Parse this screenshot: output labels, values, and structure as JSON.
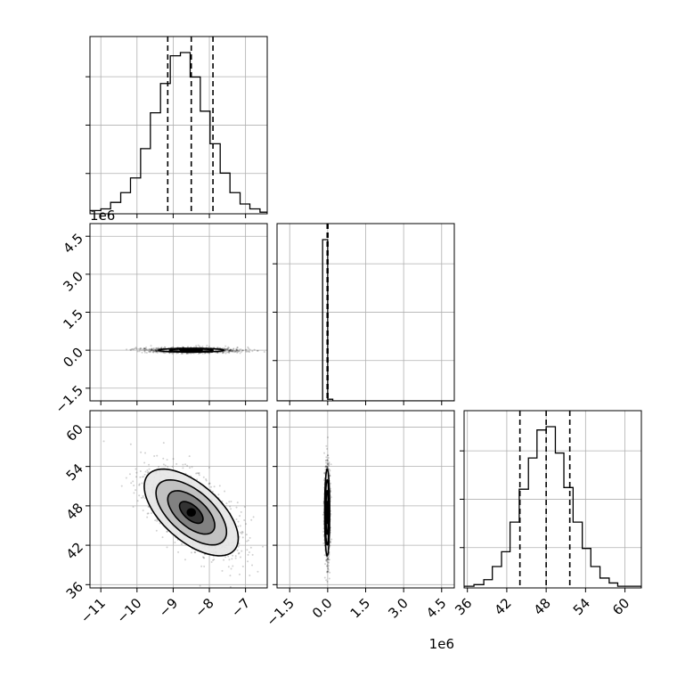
{
  "chart_data": {
    "type": "corner",
    "title": "",
    "grid": true,
    "colors": {
      "line": "#000000",
      "grid": "#b0b0b0",
      "points": "#000000",
      "fill": "#000000",
      "background": "#ffffff"
    },
    "params": [
      {
        "label": "",
        "range": [
          -11.3,
          -6.4
        ],
        "ticks": [
          -11,
          -10,
          -9,
          -8,
          -7
        ],
        "tick_labels": [
          "−11",
          "−10",
          "−9",
          "−8",
          "−7"
        ]
      },
      {
        "label": "",
        "offset_text": "1e6",
        "range": [
          -2.0,
          5.0
        ],
        "ticks": [
          -1.5,
          0.0,
          1.5,
          3.0,
          4.5
        ],
        "tick_labels": [
          "−1.5",
          "0.0",
          "1.5",
          "3.0",
          "4.5"
        ]
      },
      {
        "label": "",
        "range": [
          35.5,
          62.5
        ],
        "ticks": [
          36,
          42,
          48,
          54,
          60
        ],
        "tick_labels": [
          "36",
          "42",
          "48",
          "54",
          "60"
        ]
      }
    ],
    "col1_offset_text": "1e6",
    "histograms": [
      {
        "param": 0,
        "bin_edges": [
          -11.3,
          -11.0,
          -10.73,
          -10.45,
          -10.18,
          -9.9,
          -9.63,
          -9.35,
          -9.08,
          -8.8,
          -8.53,
          -8.25,
          -7.98,
          -7.7,
          -7.43,
          -7.15,
          -6.88,
          -6.6,
          -6.4
        ],
        "counts": [
          2,
          3,
          7,
          13,
          22,
          40,
          62,
          80,
          97,
          99,
          84,
          63,
          43,
          25,
          13,
          6,
          3,
          1
        ],
        "quantiles": [
          -9.15,
          -8.5,
          -7.9
        ]
      },
      {
        "param": 1,
        "bin_edges": [
          -2.0,
          -0.2,
          0.0,
          0.2,
          5.0
        ],
        "counts": [
          0,
          100,
          1,
          0
        ],
        "quantiles": [
          -0.02,
          -0.01,
          0.01
        ]
      },
      {
        "param": 2,
        "bin_edges": [
          35.5,
          37.0,
          38.5,
          39.8,
          41.2,
          42.5,
          43.9,
          45.3,
          46.6,
          48.0,
          49.4,
          50.7,
          52.1,
          53.5,
          54.8,
          56.2,
          57.6,
          58.9,
          60.3,
          62.5
        ],
        "counts": [
          1,
          2,
          5,
          13,
          22,
          40,
          60,
          79,
          96,
          98,
          82,
          61,
          40,
          24,
          13,
          6,
          3,
          1,
          1
        ],
        "quantiles": [
          44.0,
          48.0,
          51.6
        ]
      }
    ],
    "pairs": [
      {
        "x_param": 0,
        "y_param": 1,
        "center": [
          -8.5,
          0.0
        ],
        "sigma": [
          0.6,
          0.05
        ],
        "rho": 0.0,
        "contour_levels": [
          0.5,
          1.0,
          1.5
        ]
      },
      {
        "x_param": 0,
        "y_param": 2,
        "center": [
          -8.5,
          47.0
        ],
        "sigma": [
          0.65,
          3.3
        ],
        "rho": -0.6,
        "contour_levels": [
          0.5,
          1.0,
          1.5,
          2.0
        ]
      },
      {
        "x_param": 1,
        "y_param": 2,
        "center": [
          -0.02,
          47.0
        ],
        "sigma": [
          0.05,
          3.3
        ],
        "rho": 0.0,
        "contour_levels": [
          0.5,
          1.0,
          1.5,
          2.0
        ]
      }
    ]
  }
}
